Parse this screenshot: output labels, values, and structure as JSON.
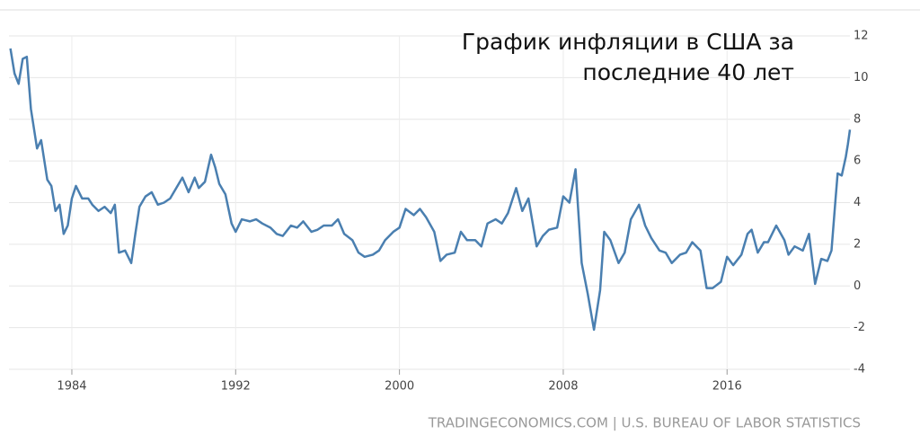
{
  "chart_data": {
    "type": "line",
    "title": "График инфляции в США за последние 40 лет",
    "source": "TRADINGECONOMICS.COM | U.S. BUREAU OF LABOR STATISTICS",
    "xlim": [
      1981,
      2022
    ],
    "xticks": [
      1984,
      1992,
      2000,
      2008,
      2016
    ],
    "ylim": [
      -4,
      12
    ],
    "yticks": [
      -4,
      -2,
      0,
      2,
      4,
      6,
      8,
      10,
      12
    ],
    "grid": true,
    "series": [
      {
        "color": "#4a7fb0",
        "x": [
          1981.0,
          1981.2,
          1981.4,
          1981.6,
          1981.8,
          1982.0,
          1982.3,
          1982.5,
          1982.8,
          1983.0,
          1983.2,
          1983.4,
          1983.6,
          1983.8,
          1984.0,
          1984.2,
          1984.5,
          1984.8,
          1985.0,
          1985.3,
          1985.6,
          1985.9,
          1986.1,
          1986.3,
          1986.6,
          1986.9,
          1987.1,
          1987.3,
          1987.6,
          1987.9,
          1988.2,
          1988.5,
          1988.8,
          1989.1,
          1989.4,
          1989.7,
          1990.0,
          1990.2,
          1990.5,
          1990.8,
          1991.0,
          1991.2,
          1991.5,
          1991.8,
          1992.0,
          1992.3,
          1992.7,
          1993.0,
          1993.3,
          1993.7,
          1994.0,
          1994.3,
          1994.7,
          1995.0,
          1995.3,
          1995.7,
          1996.0,
          1996.3,
          1996.7,
          1997.0,
          1997.3,
          1997.7,
          1998.0,
          1998.3,
          1998.7,
          1999.0,
          1999.3,
          1999.7,
          2000.0,
          2000.3,
          2000.7,
          2001.0,
          2001.3,
          2001.7,
          2002.0,
          2002.3,
          2002.7,
          2003.0,
          2003.3,
          2003.7,
          2004.0,
          2004.3,
          2004.7,
          2005.0,
          2005.3,
          2005.7,
          2006.0,
          2006.3,
          2006.7,
          2007.0,
          2007.3,
          2007.7,
          2008.0,
          2008.3,
          2008.6,
          2008.9,
          2009.2,
          2009.5,
          2009.8,
          2010.0,
          2010.3,
          2010.7,
          2011.0,
          2011.3,
          2011.7,
          2012.0,
          2012.3,
          2012.7,
          2013.0,
          2013.3,
          2013.7,
          2014.0,
          2014.3,
          2014.7,
          2015.0,
          2015.3,
          2015.7,
          2016.0,
          2016.3,
          2016.7,
          2017.0,
          2017.2,
          2017.5,
          2017.8,
          2018.0,
          2018.4,
          2018.8,
          2019.0,
          2019.3,
          2019.7,
          2020.0,
          2020.3,
          2020.6,
          2020.9,
          2021.1,
          2021.3,
          2021.4,
          2021.6,
          2021.8,
          2021.9,
          2022.0
        ],
        "values": [
          11.4,
          10.2,
          9.7,
          10.9,
          11.0,
          8.5,
          6.6,
          7.0,
          5.1,
          4.8,
          3.6,
          3.9,
          2.5,
          2.9,
          4.2,
          4.8,
          4.2,
          4.2,
          3.9,
          3.6,
          3.8,
          3.5,
          3.9,
          1.6,
          1.7,
          1.1,
          2.5,
          3.8,
          4.3,
          4.5,
          3.9,
          4.0,
          4.2,
          4.7,
          5.2,
          4.5,
          5.2,
          4.7,
          5.0,
          6.3,
          5.7,
          4.9,
          4.4,
          3.0,
          2.6,
          3.2,
          3.1,
          3.2,
          3.0,
          2.8,
          2.5,
          2.4,
          2.9,
          2.8,
          3.1,
          2.6,
          2.7,
          2.9,
          2.9,
          3.2,
          2.5,
          2.2,
          1.6,
          1.4,
          1.5,
          1.7,
          2.2,
          2.6,
          2.8,
          3.7,
          3.4,
          3.7,
          3.3,
          2.6,
          1.2,
          1.5,
          1.6,
          2.6,
          2.2,
          2.2,
          1.9,
          3.0,
          3.2,
          3.0,
          3.5,
          4.7,
          3.6,
          4.2,
          1.9,
          2.4,
          2.7,
          2.8,
          4.3,
          4.0,
          5.6,
          1.1,
          -0.4,
          -2.1,
          -0.2,
          2.6,
          2.2,
          1.1,
          1.6,
          3.2,
          3.9,
          2.9,
          2.3,
          1.7,
          1.6,
          1.1,
          1.5,
          1.6,
          2.1,
          1.7,
          -0.1,
          -0.1,
          0.2,
          1.4,
          1.0,
          1.5,
          2.5,
          2.7,
          1.6,
          2.1,
          2.1,
          2.9,
          2.2,
          1.5,
          1.9,
          1.7,
          2.5,
          0.1,
          1.3,
          1.2,
          1.7,
          4.2,
          5.4,
          5.3,
          6.2,
          6.8,
          7.5
        ]
      }
    ]
  }
}
